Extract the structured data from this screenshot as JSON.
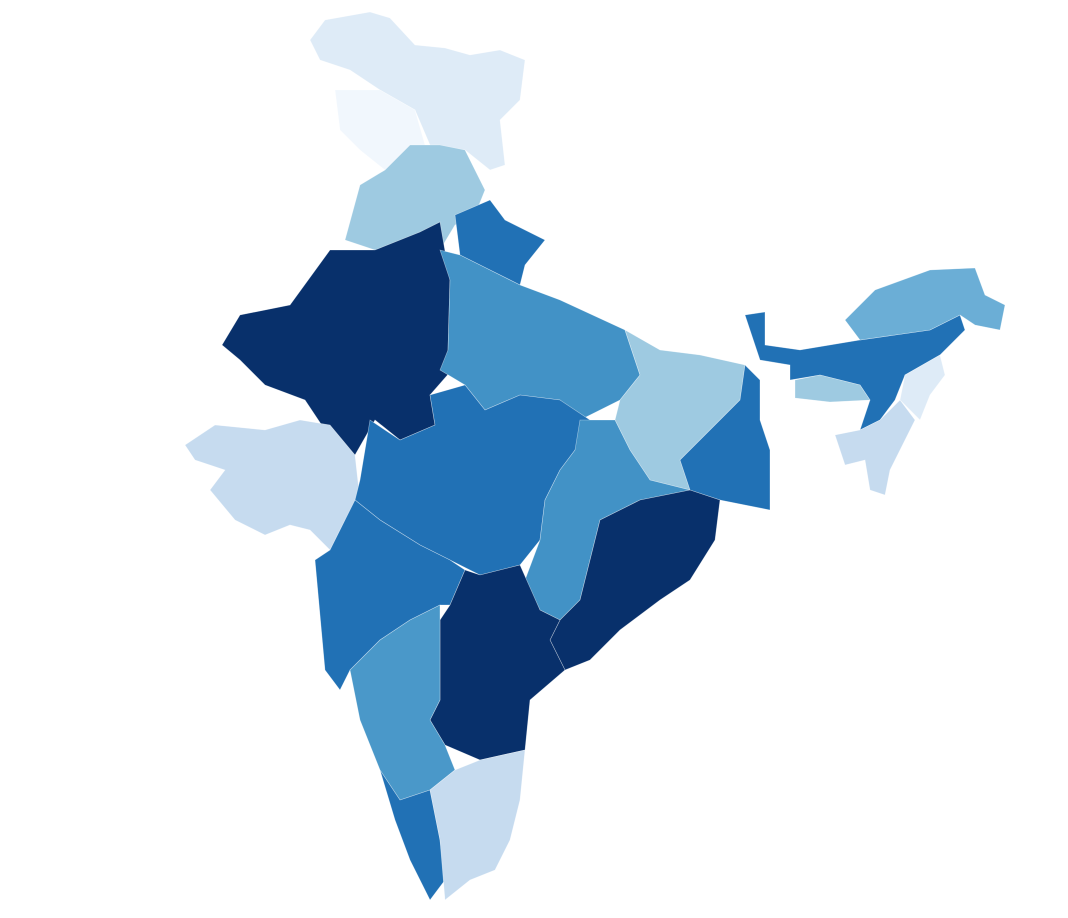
{
  "regions": [
    {
      "color": "#deebf7"
    },
    {
      "color": "#f1f7fd"
    },
    {
      "color": "#9ecae1"
    },
    {
      "color": "#2171b5"
    },
    {
      "color": "#08306b"
    },
    {
      "color": "#c6dbef"
    },
    {
      "color": "#4292c6"
    },
    {
      "color": "#2171b5"
    },
    {
      "color": "#2171b5"
    },
    {
      "color": "#9ecae1"
    },
    {
      "color": "#4292c6"
    },
    {
      "color": "#2171b5"
    },
    {
      "color": "#08306b"
    },
    {
      "color": "#08306b"
    },
    {
      "color": "#4a98c9"
    },
    {
      "color": "#2171b5"
    },
    {
      "color": "#c6dbef"
    },
    {
      "color": "#2171b5"
    },
    {
      "color": "#6baed6"
    },
    {
      "color": "#9ecae1"
    },
    {
      "color": "#c6dbef"
    },
    {
      "color": "#deebf7"
    }
  ]
}
